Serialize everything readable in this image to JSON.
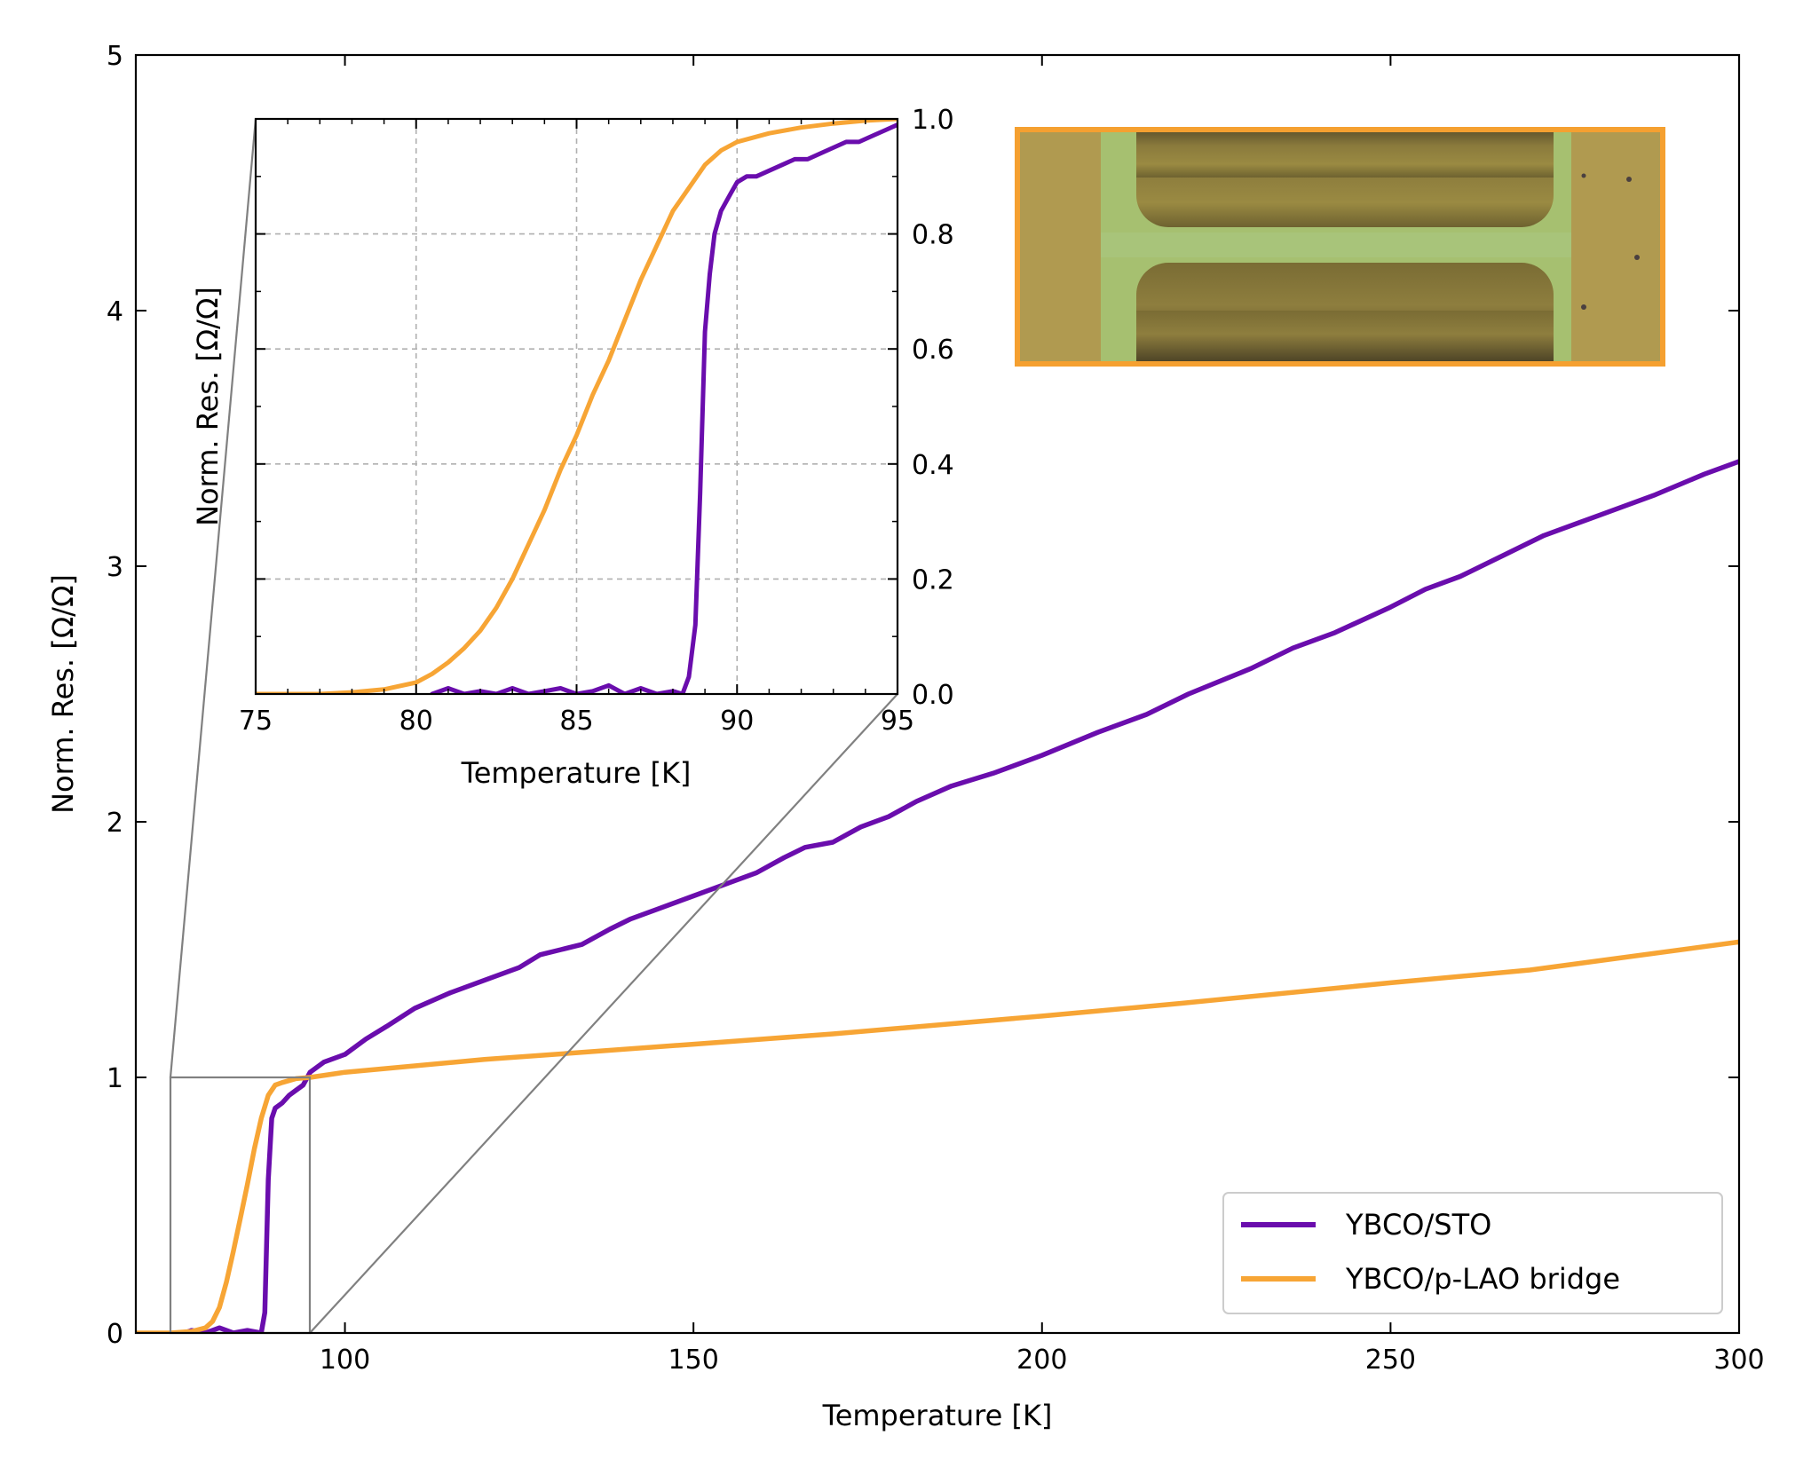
{
  "colors": {
    "ybco_sto": "#6a0dad",
    "ybco_plao": "#f7a535",
    "zoom_lines": "#808080",
    "grid": "#b0b0b0",
    "image_border": "#f5a030"
  },
  "chart_data": [
    {
      "id": "main",
      "type": "line",
      "title": "",
      "xlabel": "Temperature [K]",
      "ylabel": "Norm. Res. [Ω/Ω]",
      "xlim": [
        70,
        300
      ],
      "ylim": [
        0,
        5
      ],
      "xticks": [
        100,
        150,
        200,
        250,
        300
      ],
      "xtick_labels": [
        "100",
        "150",
        "200",
        "250",
        "300"
      ],
      "yticks": [
        0,
        1,
        2,
        3,
        4,
        5
      ],
      "ytick_labels": [
        "0",
        "1",
        "2",
        "3",
        "4",
        "5"
      ],
      "grid": false,
      "legend_position": "lower-right",
      "series": [
        {
          "name": "YBCO/STO",
          "color_key": "ybco_sto",
          "x": [
            77,
            78,
            80,
            82,
            84,
            86,
            88,
            88.5,
            89,
            89.5,
            90,
            91,
            92,
            93,
            94,
            95,
            97,
            100,
            103,
            106,
            110,
            115,
            120,
            125,
            128,
            131,
            134,
            138,
            141,
            145,
            150,
            155,
            159,
            163,
            166,
            170,
            174,
            178,
            182,
            187,
            193,
            200,
            208,
            215,
            221,
            230,
            236,
            242,
            250,
            255,
            260,
            266,
            272,
            280,
            288,
            295,
            300
          ],
          "y": [
            0.0,
            0.01,
            0.0,
            0.02,
            0.0,
            0.01,
            0.0,
            0.08,
            0.6,
            0.84,
            0.88,
            0.9,
            0.93,
            0.95,
            0.97,
            1.02,
            1.06,
            1.09,
            1.15,
            1.2,
            1.27,
            1.33,
            1.38,
            1.43,
            1.48,
            1.5,
            1.52,
            1.58,
            1.62,
            1.66,
            1.71,
            1.76,
            1.8,
            1.86,
            1.9,
            1.92,
            1.98,
            2.02,
            2.08,
            2.14,
            2.19,
            2.26,
            2.35,
            2.42,
            2.5,
            2.6,
            2.68,
            2.74,
            2.84,
            2.91,
            2.96,
            3.04,
            3.12,
            3.2,
            3.28,
            3.36,
            3.41
          ]
        },
        {
          "name": "YBCO/p-LAO bridge",
          "color_key": "ybco_plao",
          "x": [
            70,
            75,
            78,
            80,
            81,
            82,
            83,
            84,
            85,
            86,
            87,
            88,
            89,
            90,
            91,
            93,
            95,
            100,
            120,
            150,
            170,
            200,
            220,
            250,
            270,
            300
          ],
          "y": [
            0.0,
            0.0,
            0.006,
            0.02,
            0.045,
            0.1,
            0.2,
            0.32,
            0.45,
            0.58,
            0.72,
            0.84,
            0.93,
            0.97,
            0.98,
            0.995,
            1.0,
            1.02,
            1.07,
            1.13,
            1.17,
            1.24,
            1.29,
            1.37,
            1.42,
            1.53
          ]
        }
      ]
    },
    {
      "id": "inset",
      "type": "line",
      "title": "",
      "xlabel": "Temperature [K]",
      "ylabel": "Norm. Res. [Ω/Ω]",
      "xlim": [
        75,
        95
      ],
      "ylim": [
        0,
        1
      ],
      "xticks": [
        75,
        80,
        85,
        90,
        95
      ],
      "xtick_labels": [
        "75",
        "80",
        "85",
        "90",
        "95"
      ],
      "yticks": [
        0.0,
        0.2,
        0.4,
        0.6,
        0.8,
        1.0
      ],
      "ytick_labels": [
        "0.0",
        "0.2",
        "0.4",
        "0.6",
        "0.8",
        "1.0"
      ],
      "yaxis_side": "right",
      "grid": true,
      "series": [
        {
          "name": "YBCO/STO",
          "color_key": "ybco_sto",
          "x": [
            80.5,
            81,
            81.5,
            82,
            82.5,
            83,
            83.5,
            84,
            84.5,
            85,
            85.5,
            86,
            86.5,
            87,
            87.5,
            88,
            88.3,
            88.5,
            88.7,
            88.85,
            89,
            89.15,
            89.3,
            89.5,
            89.8,
            90,
            90.3,
            90.6,
            91,
            91.4,
            91.8,
            92.2,
            92.6,
            93,
            93.4,
            93.8,
            94.2,
            94.6,
            95
          ],
          "y": [
            0.0,
            0.01,
            0.0,
            0.005,
            0.0,
            0.01,
            0.0,
            0.005,
            0.01,
            0.0,
            0.005,
            0.015,
            0.0,
            0.01,
            0.0,
            0.005,
            0.0,
            0.03,
            0.12,
            0.35,
            0.63,
            0.73,
            0.8,
            0.84,
            0.87,
            0.89,
            0.9,
            0.9,
            0.91,
            0.92,
            0.93,
            0.93,
            0.94,
            0.95,
            0.96,
            0.96,
            0.97,
            0.98,
            0.99
          ]
        },
        {
          "name": "YBCO/p-LAO bridge",
          "color_key": "ybco_plao",
          "x": [
            75,
            77,
            78,
            79,
            80,
            80.5,
            81,
            81.5,
            82,
            82.5,
            83,
            83.5,
            84,
            84.5,
            85,
            85.5,
            86,
            86.5,
            87,
            87.5,
            88,
            88.5,
            89,
            89.5,
            90,
            91,
            92,
            93,
            94,
            95
          ],
          "y": [
            0.0,
            0.0,
            0.003,
            0.008,
            0.02,
            0.035,
            0.055,
            0.08,
            0.11,
            0.15,
            0.2,
            0.26,
            0.32,
            0.39,
            0.45,
            0.52,
            0.58,
            0.65,
            0.72,
            0.78,
            0.84,
            0.88,
            0.92,
            0.945,
            0.96,
            0.975,
            0.985,
            0.992,
            0.997,
            1.0
          ]
        }
      ]
    }
  ]
}
